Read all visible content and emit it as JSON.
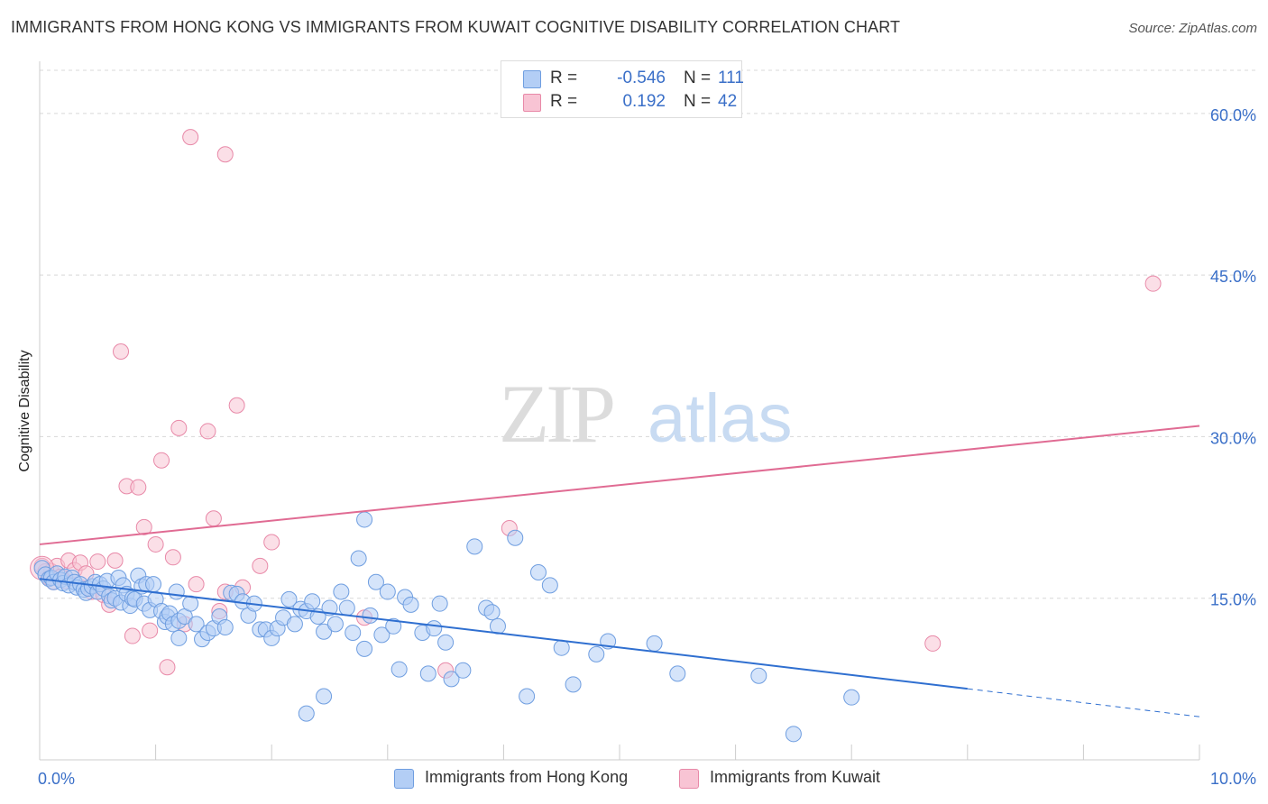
{
  "title": "IMMIGRANTS FROM HONG KONG VS IMMIGRANTS FROM KUWAIT COGNITIVE DISABILITY CORRELATION CHART",
  "source": "Source: ZipAtlas.com",
  "watermark": {
    "zip": "ZIP",
    "atlas": "atlas"
  },
  "stats": [
    {
      "r_label": "R =",
      "r_value": "-0.546",
      "n_label": "N =",
      "n_value": "111"
    },
    {
      "r_label": "R =",
      "r_value": "0.192",
      "n_label": "N =",
      "n_value": "42"
    }
  ],
  "colors": {
    "blue_fill": "#b3cef5",
    "blue_stroke": "#6f9ee0",
    "blue_line": "#2f6fd0",
    "pink_fill": "#f8c4d4",
    "pink_stroke": "#e889a8",
    "pink_line": "#e06b93",
    "tick_text": "#3a6fc8"
  },
  "chart_data": {
    "type": "scatter",
    "xlabel": "",
    "ylabel": "Cognitive Disability",
    "xlim": [
      0,
      10
    ],
    "ylim": [
      0,
      64
    ],
    "x_tick_labels": [
      {
        "value": 0,
        "label": "0.0%"
      },
      {
        "value": 10,
        "label": "10.0%"
      }
    ],
    "y_tick_labels": [
      {
        "value": 15,
        "label": "15.0%"
      },
      {
        "value": 30,
        "label": "30.0%"
      },
      {
        "value": 45,
        "label": "45.0%"
      },
      {
        "value": 60,
        "label": "60.0%"
      }
    ],
    "legend_position": "bottom",
    "grid": true,
    "series": [
      {
        "name": "Immigrants from Hong Kong",
        "color": "#6f9ee0",
        "trend": {
          "x": [
            0,
            8.0
          ],
          "y": [
            16.8,
            6.6
          ],
          "dashed_to": [
            10,
            4.0
          ]
        },
        "points": [
          [
            0.02,
            17.8
          ],
          [
            0.05,
            17.2
          ],
          [
            0.08,
            16.8
          ],
          [
            0.1,
            16.9
          ],
          [
            0.12,
            16.5
          ],
          [
            0.15,
            17.3
          ],
          [
            0.18,
            16.7
          ],
          [
            0.2,
            16.4
          ],
          [
            0.22,
            17.0
          ],
          [
            0.25,
            16.2
          ],
          [
            0.28,
            16.9
          ],
          [
            0.3,
            16.5
          ],
          [
            0.32,
            16.0
          ],
          [
            0.35,
            16.3
          ],
          [
            0.38,
            15.8
          ],
          [
            0.4,
            15.5
          ],
          [
            0.42,
            15.9
          ],
          [
            0.45,
            16.1
          ],
          [
            0.48,
            16.5
          ],
          [
            0.5,
            15.6
          ],
          [
            0.52,
            16.3
          ],
          [
            0.55,
            15.9
          ],
          [
            0.58,
            16.6
          ],
          [
            0.6,
            15.2
          ],
          [
            0.62,
            14.8
          ],
          [
            0.65,
            15.0
          ],
          [
            0.68,
            16.9
          ],
          [
            0.7,
            14.6
          ],
          [
            0.72,
            16.2
          ],
          [
            0.75,
            15.4
          ],
          [
            0.78,
            14.3
          ],
          [
            0.8,
            15.0
          ],
          [
            0.82,
            14.9
          ],
          [
            0.85,
            17.1
          ],
          [
            0.88,
            16.1
          ],
          [
            0.9,
            14.5
          ],
          [
            0.92,
            16.3
          ],
          [
            0.95,
            13.9
          ],
          [
            0.98,
            16.3
          ],
          [
            1.0,
            14.9
          ],
          [
            1.05,
            13.8
          ],
          [
            1.08,
            12.8
          ],
          [
            1.1,
            13.3
          ],
          [
            1.12,
            13.6
          ],
          [
            1.15,
            12.6
          ],
          [
            1.18,
            15.6
          ],
          [
            1.2,
            12.9
          ],
          [
            1.25,
            13.3
          ],
          [
            1.3,
            14.5
          ],
          [
            1.35,
            12.6
          ],
          [
            1.4,
            11.2
          ],
          [
            1.45,
            11.8
          ],
          [
            1.5,
            12.2
          ],
          [
            1.55,
            13.3
          ],
          [
            1.6,
            12.3
          ],
          [
            1.65,
            15.5
          ],
          [
            1.7,
            15.4
          ],
          [
            1.75,
            14.7
          ],
          [
            1.8,
            13.4
          ],
          [
            1.85,
            14.5
          ],
          [
            1.9,
            12.1
          ],
          [
            1.95,
            12.1
          ],
          [
            2.0,
            11.3
          ],
          [
            2.05,
            12.2
          ],
          [
            2.1,
            13.2
          ],
          [
            2.15,
            14.9
          ],
          [
            2.2,
            12.6
          ],
          [
            2.25,
            14.0
          ],
          [
            2.3,
            13.8
          ],
          [
            2.35,
            14.7
          ],
          [
            2.4,
            13.3
          ],
          [
            2.45,
            11.9
          ],
          [
            2.5,
            14.1
          ],
          [
            2.55,
            12.6
          ],
          [
            2.6,
            15.6
          ],
          [
            2.65,
            14.1
          ],
          [
            2.7,
            11.8
          ],
          [
            2.75,
            18.7
          ],
          [
            2.8,
            10.3
          ],
          [
            2.85,
            13.4
          ],
          [
            2.9,
            16.5
          ],
          [
            2.95,
            11.6
          ],
          [
            3.0,
            15.6
          ],
          [
            3.05,
            12.4
          ],
          [
            3.1,
            8.4
          ],
          [
            3.15,
            15.1
          ],
          [
            3.2,
            14.4
          ],
          [
            3.3,
            11.8
          ],
          [
            3.35,
            8.0
          ],
          [
            3.4,
            12.2
          ],
          [
            3.45,
            14.5
          ],
          [
            3.5,
            10.9
          ],
          [
            3.55,
            7.5
          ],
          [
            3.65,
            8.3
          ],
          [
            3.85,
            14.1
          ],
          [
            3.9,
            13.7
          ],
          [
            3.95,
            12.4
          ],
          [
            4.2,
            5.9
          ],
          [
            4.3,
            17.4
          ],
          [
            4.4,
            16.2
          ],
          [
            4.5,
            10.4
          ],
          [
            4.6,
            7.0
          ],
          [
            4.8,
            9.8
          ],
          [
            4.9,
            11.0
          ],
          [
            5.3,
            10.8
          ],
          [
            5.5,
            8.0
          ],
          [
            6.2,
            7.8
          ],
          [
            7.0,
            5.8
          ],
          [
            1.2,
            11.3
          ],
          [
            2.45,
            5.9
          ],
          [
            2.3,
            4.3
          ],
          [
            6.5,
            2.4
          ],
          [
            2.8,
            22.3
          ],
          [
            3.75,
            19.8
          ],
          [
            4.1,
            20.6
          ]
        ]
      },
      {
        "name": "Immigrants from Kuwait",
        "color": "#e889a8",
        "trend": {
          "x": [
            0,
            10
          ],
          "y": [
            20.0,
            31.0
          ]
        },
        "points": [
          [
            0.02,
            18.0
          ],
          [
            0.05,
            17.5
          ],
          [
            0.08,
            16.9
          ],
          [
            0.1,
            17.5
          ],
          [
            0.12,
            16.5
          ],
          [
            0.15,
            18.0
          ],
          [
            0.18,
            17.0
          ],
          [
            0.22,
            16.6
          ],
          [
            0.25,
            18.5
          ],
          [
            0.3,
            17.6
          ],
          [
            0.35,
            18.3
          ],
          [
            0.4,
            17.3
          ],
          [
            0.45,
            15.6
          ],
          [
            0.5,
            18.4
          ],
          [
            0.55,
            15.3
          ],
          [
            0.6,
            14.4
          ],
          [
            0.65,
            18.5
          ],
          [
            0.7,
            37.9
          ],
          [
            0.75,
            25.4
          ],
          [
            0.8,
            11.5
          ],
          [
            0.85,
            25.3
          ],
          [
            0.9,
            21.6
          ],
          [
            0.95,
            12.0
          ],
          [
            1.0,
            20.0
          ],
          [
            1.05,
            27.8
          ],
          [
            1.1,
            8.6
          ],
          [
            1.15,
            18.8
          ],
          [
            1.2,
            30.8
          ],
          [
            1.25,
            12.6
          ],
          [
            1.3,
            57.8
          ],
          [
            1.35,
            16.3
          ],
          [
            1.45,
            30.5
          ],
          [
            1.5,
            22.4
          ],
          [
            1.55,
            13.8
          ],
          [
            1.6,
            15.6
          ],
          [
            1.7,
            32.9
          ],
          [
            1.75,
            16.0
          ],
          [
            1.9,
            18.0
          ],
          [
            2.0,
            20.2
          ],
          [
            2.8,
            13.2
          ],
          [
            3.5,
            8.3
          ],
          [
            4.05,
            21.5
          ],
          [
            1.6,
            56.2
          ],
          [
            9.6,
            44.2
          ],
          [
            7.7,
            10.8
          ]
        ]
      }
    ]
  },
  "legend": [
    "Immigrants from Hong Kong",
    "Immigrants from Kuwait"
  ]
}
